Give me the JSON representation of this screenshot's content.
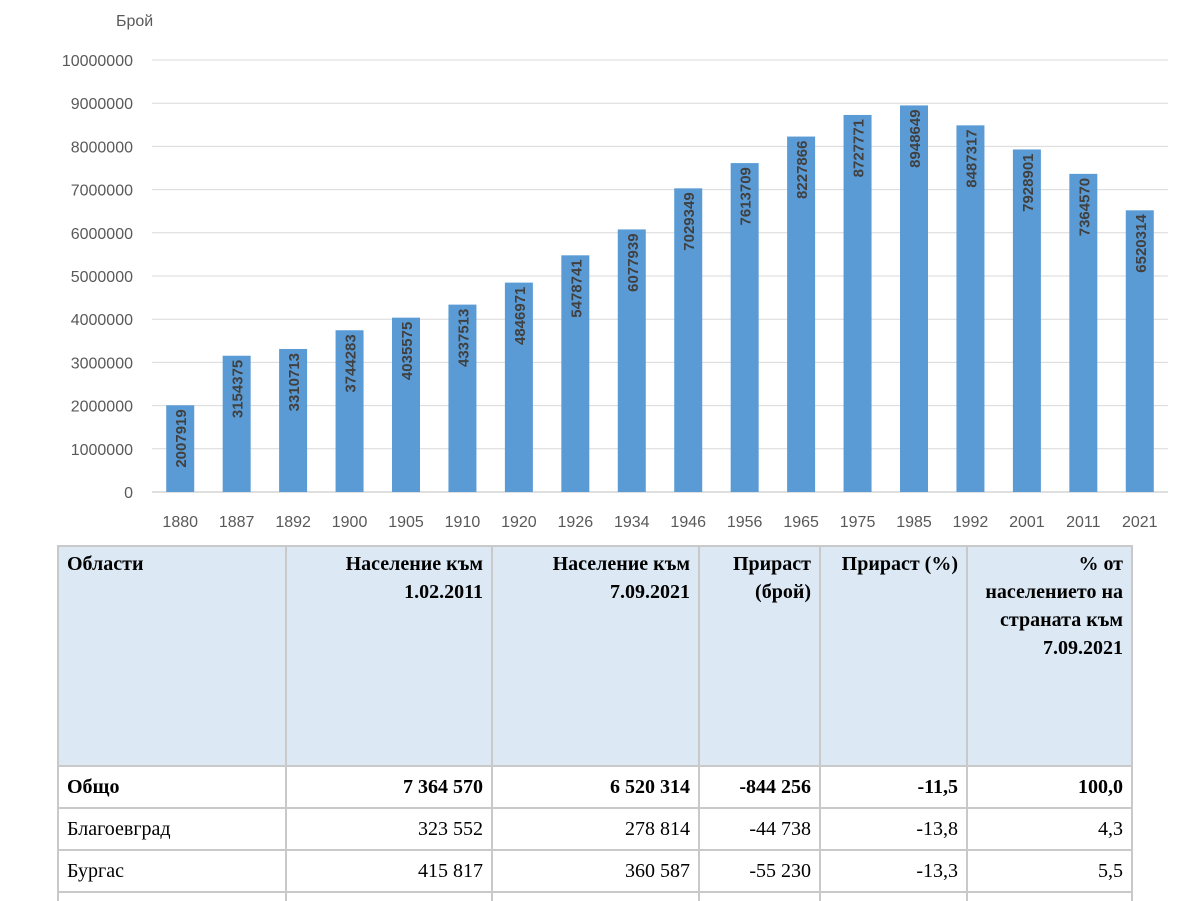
{
  "chart_data": {
    "type": "bar",
    "ylabel": "Брой",
    "ylim": [
      0,
      10000000
    ],
    "yticks": [
      "0",
      "1000000",
      "2000000",
      "3000000",
      "4000000",
      "5000000",
      "6000000",
      "7000000",
      "8000000",
      "9000000",
      "10000000"
    ],
    "categories": [
      "1880",
      "1887",
      "1892",
      "1900",
      "1905",
      "1910",
      "1920",
      "1926",
      "1934",
      "1946",
      "1956",
      "1965",
      "1975",
      "1985",
      "1992",
      "2001",
      "2011",
      "2021"
    ],
    "values": [
      2007919,
      3154375,
      3310713,
      3744283,
      4035575,
      4337513,
      4846971,
      5478741,
      6077939,
      7029349,
      7613709,
      8227866,
      8727771,
      8948649,
      8487317,
      7928901,
      7364570,
      6520314
    ],
    "bar_color": "#5b9bd5",
    "grid": true,
    "legend": "none"
  },
  "table": {
    "headers": [
      "Области",
      "Население към 1.02.2011",
      "Население към 7.09.2021",
      "Прираст (брой)",
      "Прираст (%)",
      "% от населението на страната към 7.09.2021"
    ],
    "rows": [
      [
        "Общо",
        "7 364 570",
        "6 520 314",
        "-844 256",
        "-11,5",
        "100,0"
      ],
      [
        "Благоевград",
        "323 552",
        "278 814",
        "-44 738",
        "-13,8",
        "4,3"
      ],
      [
        "Бургас",
        "415 817",
        "360 587",
        "-55 230",
        "-13,3",
        "5,5"
      ]
    ]
  }
}
